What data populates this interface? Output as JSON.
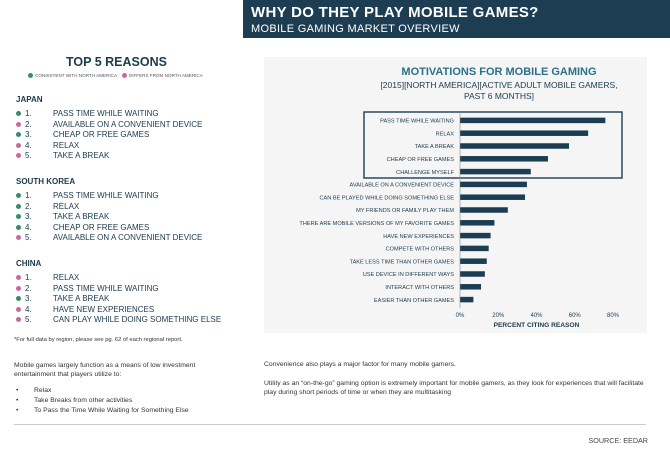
{
  "header": {
    "title": "WHY DO THEY PLAY MOBILE GAMES?",
    "subtitle": "MOBILE GAMING MARKET OVERVIEW"
  },
  "left": {
    "top_title": "TOP 5 REASONS",
    "legend": {
      "consistent": "CONSISTENT WITH NORTH AMERICA",
      "differs": "DIFFERS FROM NORTH AMERICA"
    },
    "regions": [
      {
        "name": "JAPAN",
        "items": [
          {
            "num": "1.",
            "label": "PASS TIME WHILE WAITING",
            "status": "consistent"
          },
          {
            "num": "2.",
            "label": "AVAILABLE ON A CONVENIENT DEVICE",
            "status": "differs"
          },
          {
            "num": "3.",
            "label": "CHEAP OR FREE GAMES",
            "status": "consistent"
          },
          {
            "num": "4.",
            "label": "RELAX",
            "status": "differs"
          },
          {
            "num": "5.",
            "label": "TAKE A BREAK",
            "status": "differs"
          }
        ]
      },
      {
        "name": "SOUTH KOREA",
        "items": [
          {
            "num": "1.",
            "label": "PASS TIME WHILE WAITING",
            "status": "consistent"
          },
          {
            "num": "2.",
            "label": "RELAX",
            "status": "consistent"
          },
          {
            "num": "3.",
            "label": "TAKE A BREAK",
            "status": "consistent"
          },
          {
            "num": "4.",
            "label": "CHEAP OR FREE GAMES",
            "status": "consistent"
          },
          {
            "num": "5.",
            "label": "AVAILABLE ON A CONVENIENT DEVICE",
            "status": "differs"
          }
        ]
      },
      {
        "name": "CHINA",
        "items": [
          {
            "num": "1.",
            "label": "RELAX",
            "status": "differs"
          },
          {
            "num": "2.",
            "label": "PASS TIME WHILE WAITING",
            "status": "differs"
          },
          {
            "num": "3.",
            "label": "TAKE A BREAK",
            "status": "consistent"
          },
          {
            "num": "4.",
            "label": "HAVE NEW EXPERIENCES",
            "status": "differs"
          },
          {
            "num": "5.",
            "label": "CAN PLAY WHILE DOING SOMETHING ELSE",
            "status": "differs"
          }
        ]
      }
    ],
    "footnote": "*For full data by region, please see pg. 62 of each regional report.",
    "paragraph": "Mobile games largely function as a means of low investment entertainment that players utilize to:",
    "bullets": [
      "Relax",
      "Take Breaks from other activities",
      "To Pass the Time While Waiting for Something Else"
    ]
  },
  "right": {
    "para1": "Convenience also plays a major factor for many mobile gamers.",
    "para2": "Utility as an “on-the-go” gaming option is extremely important for mobile gamers, as they look for experiences that will facilitate play during short periods of time or when they are multitasking"
  },
  "source": "SOURCE: EEDAR",
  "colors": {
    "navy": "#1d3d52",
    "consistent": "#3a8a6e",
    "differs": "#c46a9d"
  },
  "chart_data": {
    "type": "bar",
    "orientation": "horizontal",
    "title": "MOTIVATIONS FOR MOBILE GAMING",
    "subtitle_lines": [
      "[2015][NORTH AMERICA][ACTIVE ADULT MOBILE GAMERS,",
      "PAST 6 MONTHS]"
    ],
    "xlabel": "PERCENT CITING REASON",
    "ylabel": "",
    "xlim": [
      0,
      80
    ],
    "x_ticks": [
      "0%",
      "20%",
      "40%",
      "60%",
      "80%"
    ],
    "highlighted_top": 5,
    "categories": [
      "PASS TIME WHILE WAITING",
      "RELAX",
      "TAKE A BREAK",
      "CHEAP OR FREE GAMES",
      "CHALLENGE MYSELF",
      "AVAILABLE ON A CONVENIENT DEVICE",
      "CAN BE PLAYED WHILE DOING SOMETHING ELSE",
      "MY FRIENDS OR FAMILY PLAY THEM",
      "THERE ARE MOBILE VERSIONS OF MY FAVORITE GAMES",
      "HAVE NEW EXPERIENCES",
      "COMPETE WITH OTHERS",
      "TAKE LESS TIME THAN OTHER GAMES",
      "USE DEVICE IN DIFFERENT WAYS",
      "INTERACT WITH OTHERS",
      "EASIER THAN OTHER GAMES"
    ],
    "values": [
      76,
      67,
      57,
      46,
      37,
      35,
      34,
      25,
      18,
      16,
      15,
      14,
      13,
      11,
      7
    ]
  }
}
